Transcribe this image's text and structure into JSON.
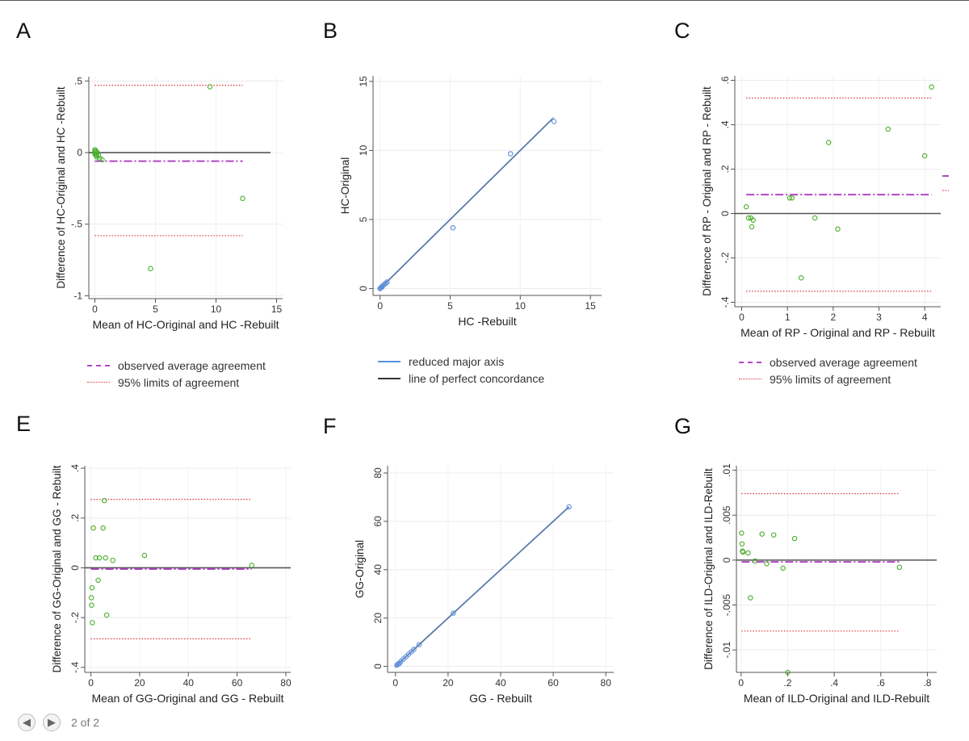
{
  "pager": {
    "prev_icon": "arrow-left-icon",
    "next_icon": "arrow-right-icon",
    "label": "2 of 2"
  },
  "colors": {
    "points_bland": "#4caf2f",
    "points_concordance": "#5b8fdb",
    "average_line": "#b246c6",
    "limits_line": "#e0303a",
    "zero_line": "#555555",
    "rma_line": "#5b8fdb",
    "perfect_line": "#333333"
  },
  "chart_data": [
    {
      "id": "A",
      "type": "scatter",
      "panel_label": "A",
      "xlabel": "Mean of HC-Original and HC -Rebuilt",
      "ylabel": "Difference of HC-Original and HC -Rebuilt",
      "xlim": [
        -0.5,
        15.5
      ],
      "ylim": [
        -1.02,
        0.53
      ],
      "xticks": [
        0,
        5,
        10,
        15
      ],
      "xtick_labels": [
        "0",
        "5",
        "10",
        "15"
      ],
      "yticks": [
        0.5,
        0,
        -0.5,
        -1
      ],
      "ytick_labels": [
        ".5",
        "0",
        "-.5",
        "-1"
      ],
      "ytick_rotate": false,
      "points": [
        [
          0,
          0.02
        ],
        [
          0,
          0.01
        ],
        [
          0,
          0.0
        ],
        [
          0,
          -0.01
        ],
        [
          0.1,
          0.01
        ],
        [
          0.1,
          -0.01
        ],
        [
          0.1,
          -0.02
        ],
        [
          0.15,
          -0.03
        ],
        [
          0.2,
          0.0
        ],
        [
          0.3,
          -0.02
        ],
        [
          0.4,
          -0.04
        ],
        [
          0.6,
          -0.05
        ],
        [
          9.5,
          0.46
        ],
        [
          12.2,
          -0.32
        ],
        [
          4.6,
          -0.81
        ]
      ],
      "zero_line": 0,
      "zero_x": [
        -0.5,
        14.5
      ],
      "avg": {
        "value": -0.06,
        "x": [
          0,
          12.2
        ]
      },
      "loa": {
        "upper": 0.47,
        "lower": -0.58,
        "x": [
          0,
          12.2
        ]
      },
      "legend": [
        "observed average agreement",
        "95% limits of agreement"
      ]
    },
    {
      "id": "B",
      "type": "scatter",
      "panel_label": "B",
      "xlabel": "HC -Rebuilt",
      "ylabel": "HC-Original",
      "xlim": [
        -0.5,
        15.8
      ],
      "ylim": [
        -0.5,
        15.4
      ],
      "xticks": [
        0,
        5,
        10,
        15
      ],
      "xtick_labels": [
        "0",
        "5",
        "10",
        "15"
      ],
      "yticks": [
        0,
        5,
        10,
        15
      ],
      "ytick_labels": [
        "0",
        "5",
        "10",
        "15"
      ],
      "ytick_rotate": true,
      "points": [
        [
          0,
          0
        ],
        [
          0.05,
          0.05
        ],
        [
          0.1,
          0.1
        ],
        [
          0.15,
          0.12
        ],
        [
          0.2,
          0.2
        ],
        [
          0.3,
          0.3
        ],
        [
          0.4,
          0.38
        ],
        [
          0.5,
          0.47
        ],
        [
          5.2,
          4.4
        ],
        [
          9.3,
          9.76
        ],
        [
          12.4,
          12.1
        ]
      ],
      "rma": {
        "from": [
          0,
          0
        ],
        "to": [
          12.4,
          12.4
        ]
      },
      "perfect": {
        "from": [
          0,
          0
        ],
        "to": [
          12.3,
          12.3
        ]
      },
      "legend": [
        "reduced major axis",
        "line of perfect concordance"
      ]
    },
    {
      "id": "C",
      "type": "scatter",
      "panel_label": "C",
      "xlabel": "Mean of RP - Original and RP - Rebuilt",
      "ylabel": "Difference of RP - Original and RP - Rebuilt",
      "xlim": [
        -0.15,
        4.35
      ],
      "ylim": [
        -0.42,
        0.62
      ],
      "xticks": [
        0,
        1,
        2,
        3,
        4
      ],
      "xtick_labels": [
        "0",
        "1",
        "2",
        "3",
        "4"
      ],
      "yticks": [
        0.6,
        0.4,
        0.2,
        0,
        -0.2,
        -0.4
      ],
      "ytick_labels": [
        ".6",
        ".4",
        ".2",
        "0",
        "-.2",
        "-.4"
      ],
      "ytick_rotate": true,
      "points": [
        [
          0.1,
          0.03
        ],
        [
          0.15,
          -0.02
        ],
        [
          0.2,
          -0.02
        ],
        [
          0.22,
          -0.06
        ],
        [
          0.25,
          -0.03
        ],
        [
          1.05,
          0.07
        ],
        [
          1.1,
          0.07
        ],
        [
          1.3,
          -0.29
        ],
        [
          1.6,
          -0.02
        ],
        [
          1.9,
          0.32
        ],
        [
          2.1,
          -0.07
        ],
        [
          3.2,
          0.38
        ],
        [
          4.0,
          0.26
        ],
        [
          4.15,
          0.57
        ]
      ],
      "zero_line": 0,
      "zero_x": [
        -0.15,
        4.35
      ],
      "avg": {
        "value": 0.085,
        "x": [
          0.1,
          4.15
        ]
      },
      "loa": {
        "upper": 0.52,
        "lower": -0.35,
        "x": [
          0.1,
          4.15
        ]
      },
      "legend": [
        "observed average agreement",
        "95% limits of agreement"
      ]
    },
    {
      "id": "E",
      "type": "scatter",
      "panel_label": "E",
      "xlabel": "Mean of GG-Original and GG - Rebuilt",
      "ylabel": "Difference of GG-Original and GG - Rebuilt",
      "xlim": [
        -2.5,
        82
      ],
      "ylim": [
        -0.42,
        0.41
      ],
      "xticks": [
        0,
        20,
        40,
        60,
        80
      ],
      "xtick_labels": [
        "0",
        "20",
        "40",
        "60",
        "80"
      ],
      "yticks": [
        0.4,
        0.2,
        0,
        -0.2,
        -0.4
      ],
      "ytick_labels": [
        ".4",
        ".2",
        "0",
        "-.2",
        "-.4"
      ],
      "ytick_rotate": true,
      "points": [
        [
          0.2,
          -0.12
        ],
        [
          0.3,
          -0.15
        ],
        [
          0.5,
          -0.08
        ],
        [
          0.6,
          -0.22
        ],
        [
          1.0,
          0.16
        ],
        [
          2.0,
          0.04
        ],
        [
          3.0,
          -0.05
        ],
        [
          3.5,
          0.04
        ],
        [
          5.0,
          0.16
        ],
        [
          5.5,
          0.27
        ],
        [
          6.0,
          0.04
        ],
        [
          6.5,
          -0.19
        ],
        [
          9.0,
          0.03
        ],
        [
          22.0,
          0.05
        ],
        [
          66.0,
          0.01
        ]
      ],
      "zero_line": 0,
      "zero_x": [
        -2.5,
        82
      ],
      "avg": {
        "value": -0.005,
        "x": [
          0,
          66
        ]
      },
      "loa": {
        "upper": 0.275,
        "lower": -0.285,
        "x": [
          0,
          66
        ]
      },
      "legend": []
    },
    {
      "id": "F",
      "type": "scatter",
      "panel_label": "F",
      "xlabel": "GG - Rebuilt",
      "ylabel": "GG-Original",
      "xlim": [
        -3,
        83
      ],
      "ylim": [
        -2.5,
        83
      ],
      "xticks": [
        0,
        20,
        40,
        60,
        80
      ],
      "xtick_labels": [
        "0",
        "20",
        "40",
        "60",
        "80"
      ],
      "yticks": [
        0,
        20,
        40,
        60,
        80
      ],
      "ytick_labels": [
        "0",
        "20",
        "40",
        "60",
        "80"
      ],
      "ytick_rotate": true,
      "points": [
        [
          0.5,
          0.5
        ],
        [
          1,
          1
        ],
        [
          1.5,
          1.2
        ],
        [
          2,
          2
        ],
        [
          3,
          3
        ],
        [
          4,
          4
        ],
        [
          5,
          5
        ],
        [
          6,
          6
        ],
        [
          7,
          7
        ],
        [
          9,
          9
        ],
        [
          22,
          22
        ],
        [
          66,
          66
        ]
      ],
      "rma": {
        "from": [
          0,
          0
        ],
        "to": [
          66,
          66
        ]
      },
      "perfect": {
        "from": [
          0,
          0
        ],
        "to": [
          66,
          66
        ]
      },
      "legend": []
    },
    {
      "id": "G",
      "type": "scatter",
      "panel_label": "G",
      "xlabel": "Mean of ILD-Original and ILD-Rebuilt",
      "ylabel": "Difference of ILD-Original and ILD-Rebuilt",
      "xlim": [
        -0.02,
        0.84
      ],
      "ylim": [
        -0.0125,
        0.0105
      ],
      "xticks": [
        0,
        0.2,
        0.4,
        0.6,
        0.8
      ],
      "xtick_labels": [
        "0",
        ".2",
        ".4",
        ".6",
        ".8"
      ],
      "yticks": [
        0.01,
        0.005,
        0,
        -0.005,
        -0.01
      ],
      "ytick_labels": [
        ".01",
        ".005",
        "0",
        "-.005",
        "-.01"
      ],
      "ytick_rotate": true,
      "points": [
        [
          0.002,
          0.003
        ],
        [
          0.004,
          0.0018
        ],
        [
          0.006,
          0.001
        ],
        [
          0.008,
          0.0009
        ],
        [
          0.03,
          0.0008
        ],
        [
          0.04,
          -0.0042
        ],
        [
          0.06,
          -0.0001
        ],
        [
          0.09,
          0.0029
        ],
        [
          0.11,
          -0.0004
        ],
        [
          0.14,
          0.0028
        ],
        [
          0.18,
          -0.0009
        ],
        [
          0.2,
          -0.0125
        ],
        [
          0.23,
          0.0024
        ],
        [
          0.68,
          -0.0008
        ]
      ],
      "zero_line": 0,
      "zero_x": [
        -0.02,
        0.84
      ],
      "avg": {
        "value": -0.0002,
        "x": [
          0.002,
          0.68
        ]
      },
      "loa": {
        "upper": 0.0074,
        "lower": -0.0079,
        "x": [
          0.002,
          0.68
        ]
      },
      "legend": []
    }
  ]
}
